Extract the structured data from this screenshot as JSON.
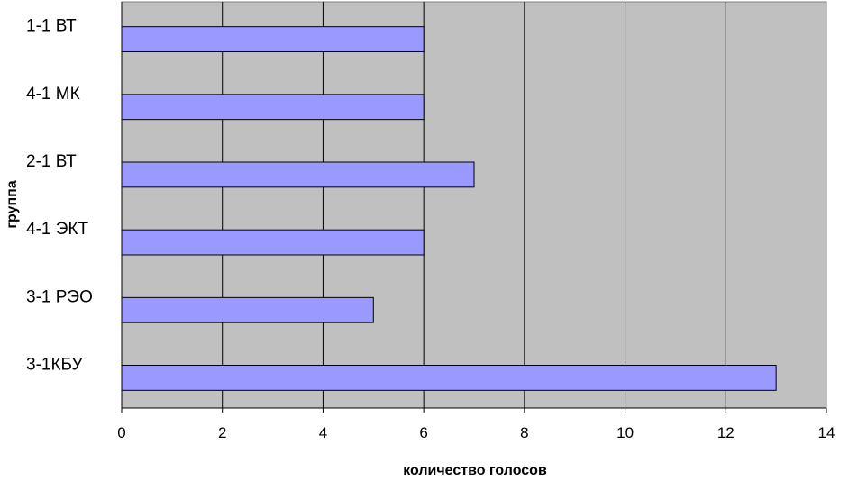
{
  "chart_data": {
    "type": "bar",
    "orientation": "horizontal",
    "categories": [
      "1-1 ВТ",
      "4-1 МК",
      "2-1 ВТ",
      "4-1 ЭКТ",
      "3-1 РЭО",
      "3-1КБУ"
    ],
    "values": [
      6,
      6,
      7,
      6,
      5,
      13
    ],
    "xlabel": "количество голосов",
    "ylabel": "группа",
    "xlim": [
      0,
      14
    ],
    "xticks": [
      "0",
      "2",
      "4",
      "6",
      "8",
      "10",
      "12",
      "14"
    ],
    "grid": true,
    "legend": "none",
    "colors": {
      "bar_fill": "#9999ff",
      "bar_stroke": "#000000",
      "plot_bg": "#c0c0c0",
      "grid": "#000000"
    }
  }
}
